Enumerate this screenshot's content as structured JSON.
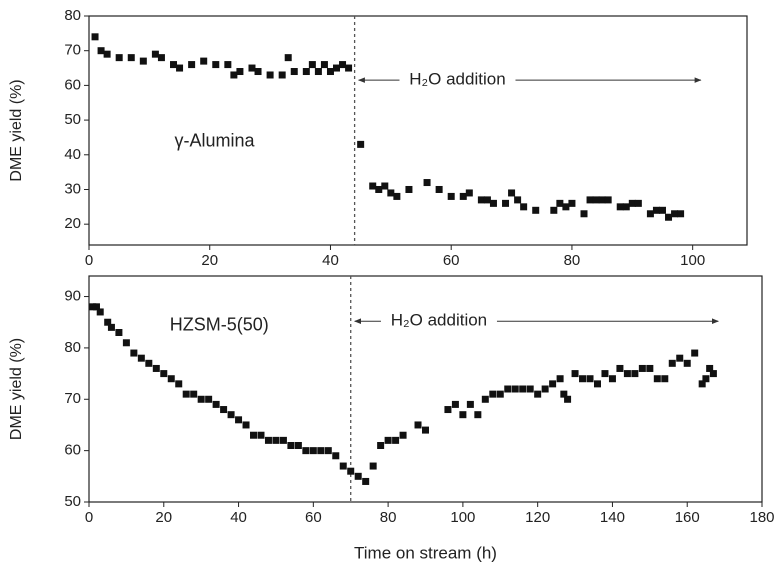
{
  "chart_data": [
    {
      "type": "scatter",
      "ylabel": "DME yield (%)",
      "label": "γ-Alumina",
      "annotation": "H₂O addition",
      "vline": 44,
      "xlim": [
        0,
        109
      ],
      "ylim": [
        14,
        80
      ],
      "xticks": [
        0,
        20,
        40,
        60,
        80,
        100
      ],
      "yticks": [
        20,
        30,
        40,
        50,
        60,
        70,
        80
      ],
      "grid": false,
      "series": [
        {
          "color": "#111111",
          "x": [
            1,
            2,
            3,
            5,
            7,
            9,
            11,
            12,
            14,
            15,
            17,
            19,
            21,
            23,
            24,
            25,
            27,
            28,
            30,
            32,
            33,
            34,
            36,
            37,
            38,
            39,
            40,
            41,
            42,
            43,
            45,
            47,
            48,
            49,
            50,
            51,
            53,
            56,
            58,
            60,
            62,
            63,
            65,
            66,
            67,
            69,
            70,
            71,
            72,
            74,
            77,
            78,
            79,
            80,
            82,
            83,
            84,
            85,
            86,
            88,
            89,
            90,
            91,
            93,
            94,
            95,
            96,
            97,
            98
          ],
          "values": [
            74,
            70,
            69,
            68,
            68,
            67,
            69,
            68,
            66,
            65,
            66,
            67,
            66,
            66,
            63,
            64,
            65,
            64,
            63,
            63,
            68,
            64,
            64,
            66,
            64,
            66,
            64,
            65,
            66,
            65,
            43,
            31,
            30,
            31,
            29,
            28,
            30,
            32,
            30,
            28,
            28,
            29,
            27,
            27,
            26,
            26,
            29,
            27,
            25,
            24,
            24,
            26,
            25,
            26,
            23,
            27,
            27,
            27,
            27,
            25,
            25,
            26,
            26,
            23,
            24,
            24,
            22,
            23,
            23
          ]
        }
      ]
    },
    {
      "type": "scatter",
      "ylabel": "DME yield (%)",
      "xlabel": "Time on stream (h)",
      "label": "HZSM-5(50)",
      "annotation": "H₂O addition",
      "vline": 70,
      "xlim": [
        0,
        180
      ],
      "ylim": [
        50,
        94
      ],
      "xticks": [
        0,
        20,
        40,
        60,
        80,
        100,
        120,
        140,
        160,
        180
      ],
      "yticks": [
        50,
        60,
        70,
        80,
        90
      ],
      "grid": false,
      "series": [
        {
          "color": "#111111",
          "x": [
            1,
            2,
            3,
            5,
            6,
            8,
            10,
            12,
            14,
            16,
            18,
            20,
            22,
            24,
            26,
            28,
            30,
            32,
            34,
            36,
            38,
            40,
            42,
            44,
            46,
            48,
            50,
            52,
            54,
            56,
            58,
            60,
            62,
            64,
            66,
            68,
            70,
            72,
            74,
            76,
            78,
            80,
            82,
            84,
            88,
            90,
            96,
            98,
            100,
            102,
            104,
            106,
            108,
            110,
            112,
            114,
            116,
            118,
            120,
            122,
            124,
            126,
            127,
            128,
            130,
            132,
            134,
            136,
            138,
            140,
            142,
            144,
            146,
            148,
            150,
            152,
            154,
            156,
            158,
            160,
            162,
            164,
            165,
            166,
            167
          ],
          "values": [
            88,
            88,
            87,
            85,
            84,
            83,
            81,
            79,
            78,
            77,
            76,
            75,
            74,
            73,
            71,
            71,
            70,
            70,
            69,
            68,
            67,
            66,
            65,
            63,
            63,
            62,
            62,
            62,
            61,
            61,
            60,
            60,
            60,
            60,
            59,
            57,
            56,
            55,
            54,
            57,
            61,
            62,
            62,
            63,
            65,
            64,
            68,
            69,
            67,
            69,
            67,
            70,
            71,
            71,
            72,
            72,
            72,
            72,
            71,
            72,
            73,
            74,
            71,
            70,
            75,
            74,
            74,
            73,
            75,
            74,
            76,
            75,
            75,
            76,
            76,
            74,
            74,
            77,
            78,
            77,
            79,
            73,
            74,
            76,
            75
          ]
        }
      ]
    }
  ]
}
